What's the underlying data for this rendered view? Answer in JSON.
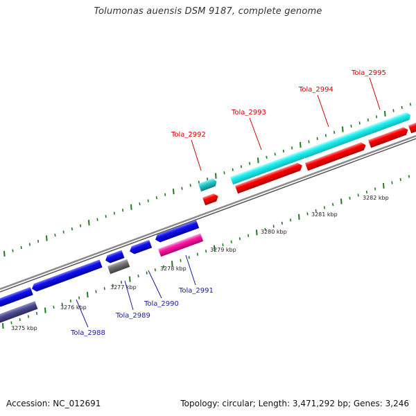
{
  "title": "Tolumonas auensis DSM 9187, complete genome",
  "footer": {
    "accession": "Accession: NC_012691",
    "summary": "Topology: circular; Length: 3,471,292 bp; Genes: 3,246"
  },
  "colors": {
    "backbone": "#8a8a8a",
    "cyan": "#1ef0f0",
    "red": "#ff0000",
    "blue": "#1010ee",
    "magenta": "#ff1aa6",
    "gray": "#707070",
    "slate": "#4a4a8c",
    "teal": "#20c8c8",
    "tick_green": "#1f7a1f"
  },
  "scale_labels": [
    "3275 kbp",
    "3276 kbp",
    "3277 kbp",
    "3278 kbp",
    "3279 kbp",
    "3280 kbp",
    "3281 kbp",
    "3282 kbp"
  ],
  "top_labels": [
    "Tola_2992",
    "Tola_2993",
    "Tola_2994",
    "Tola_2995"
  ],
  "bottom_labels": [
    "Tola_2988",
    "Tola_2989",
    "Tola_2990",
    "Tola_2991"
  ]
}
